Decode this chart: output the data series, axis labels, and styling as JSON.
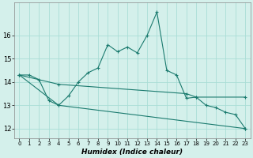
{
  "xlabel": "Humidex (Indice chaleur)",
  "line_color": "#1a7a6e",
  "bg_color": "#d4f0eb",
  "grid_color": "#aaddd6",
  "line1_x": [
    0,
    1,
    2,
    3,
    4,
    5,
    6,
    7,
    8,
    9,
    10,
    11,
    12,
    13,
    14,
    15,
    16,
    17,
    18,
    19,
    20,
    21,
    22,
    23
  ],
  "line1_y": [
    14.3,
    14.3,
    14.1,
    13.2,
    13.0,
    13.4,
    14.0,
    14.4,
    14.6,
    15.6,
    15.3,
    15.5,
    15.25,
    16.0,
    17.0,
    14.5,
    14.3,
    13.3,
    13.35,
    13.0,
    12.9,
    12.7,
    12.6,
    12.0
  ],
  "line2_x": [
    0,
    4,
    17,
    18,
    23
  ],
  "line2_y": [
    14.3,
    13.9,
    13.5,
    13.35,
    13.35
  ],
  "line3_x": [
    0,
    4,
    23
  ],
  "line3_y": [
    14.3,
    13.0,
    12.0
  ],
  "ylim": [
    11.6,
    17.4
  ],
  "yticks": [
    12,
    13,
    14,
    15,
    16
  ],
  "xticks": [
    0,
    1,
    2,
    3,
    4,
    5,
    6,
    7,
    8,
    9,
    10,
    11,
    12,
    13,
    14,
    15,
    16,
    17,
    18,
    19,
    20,
    21,
    22,
    23
  ]
}
